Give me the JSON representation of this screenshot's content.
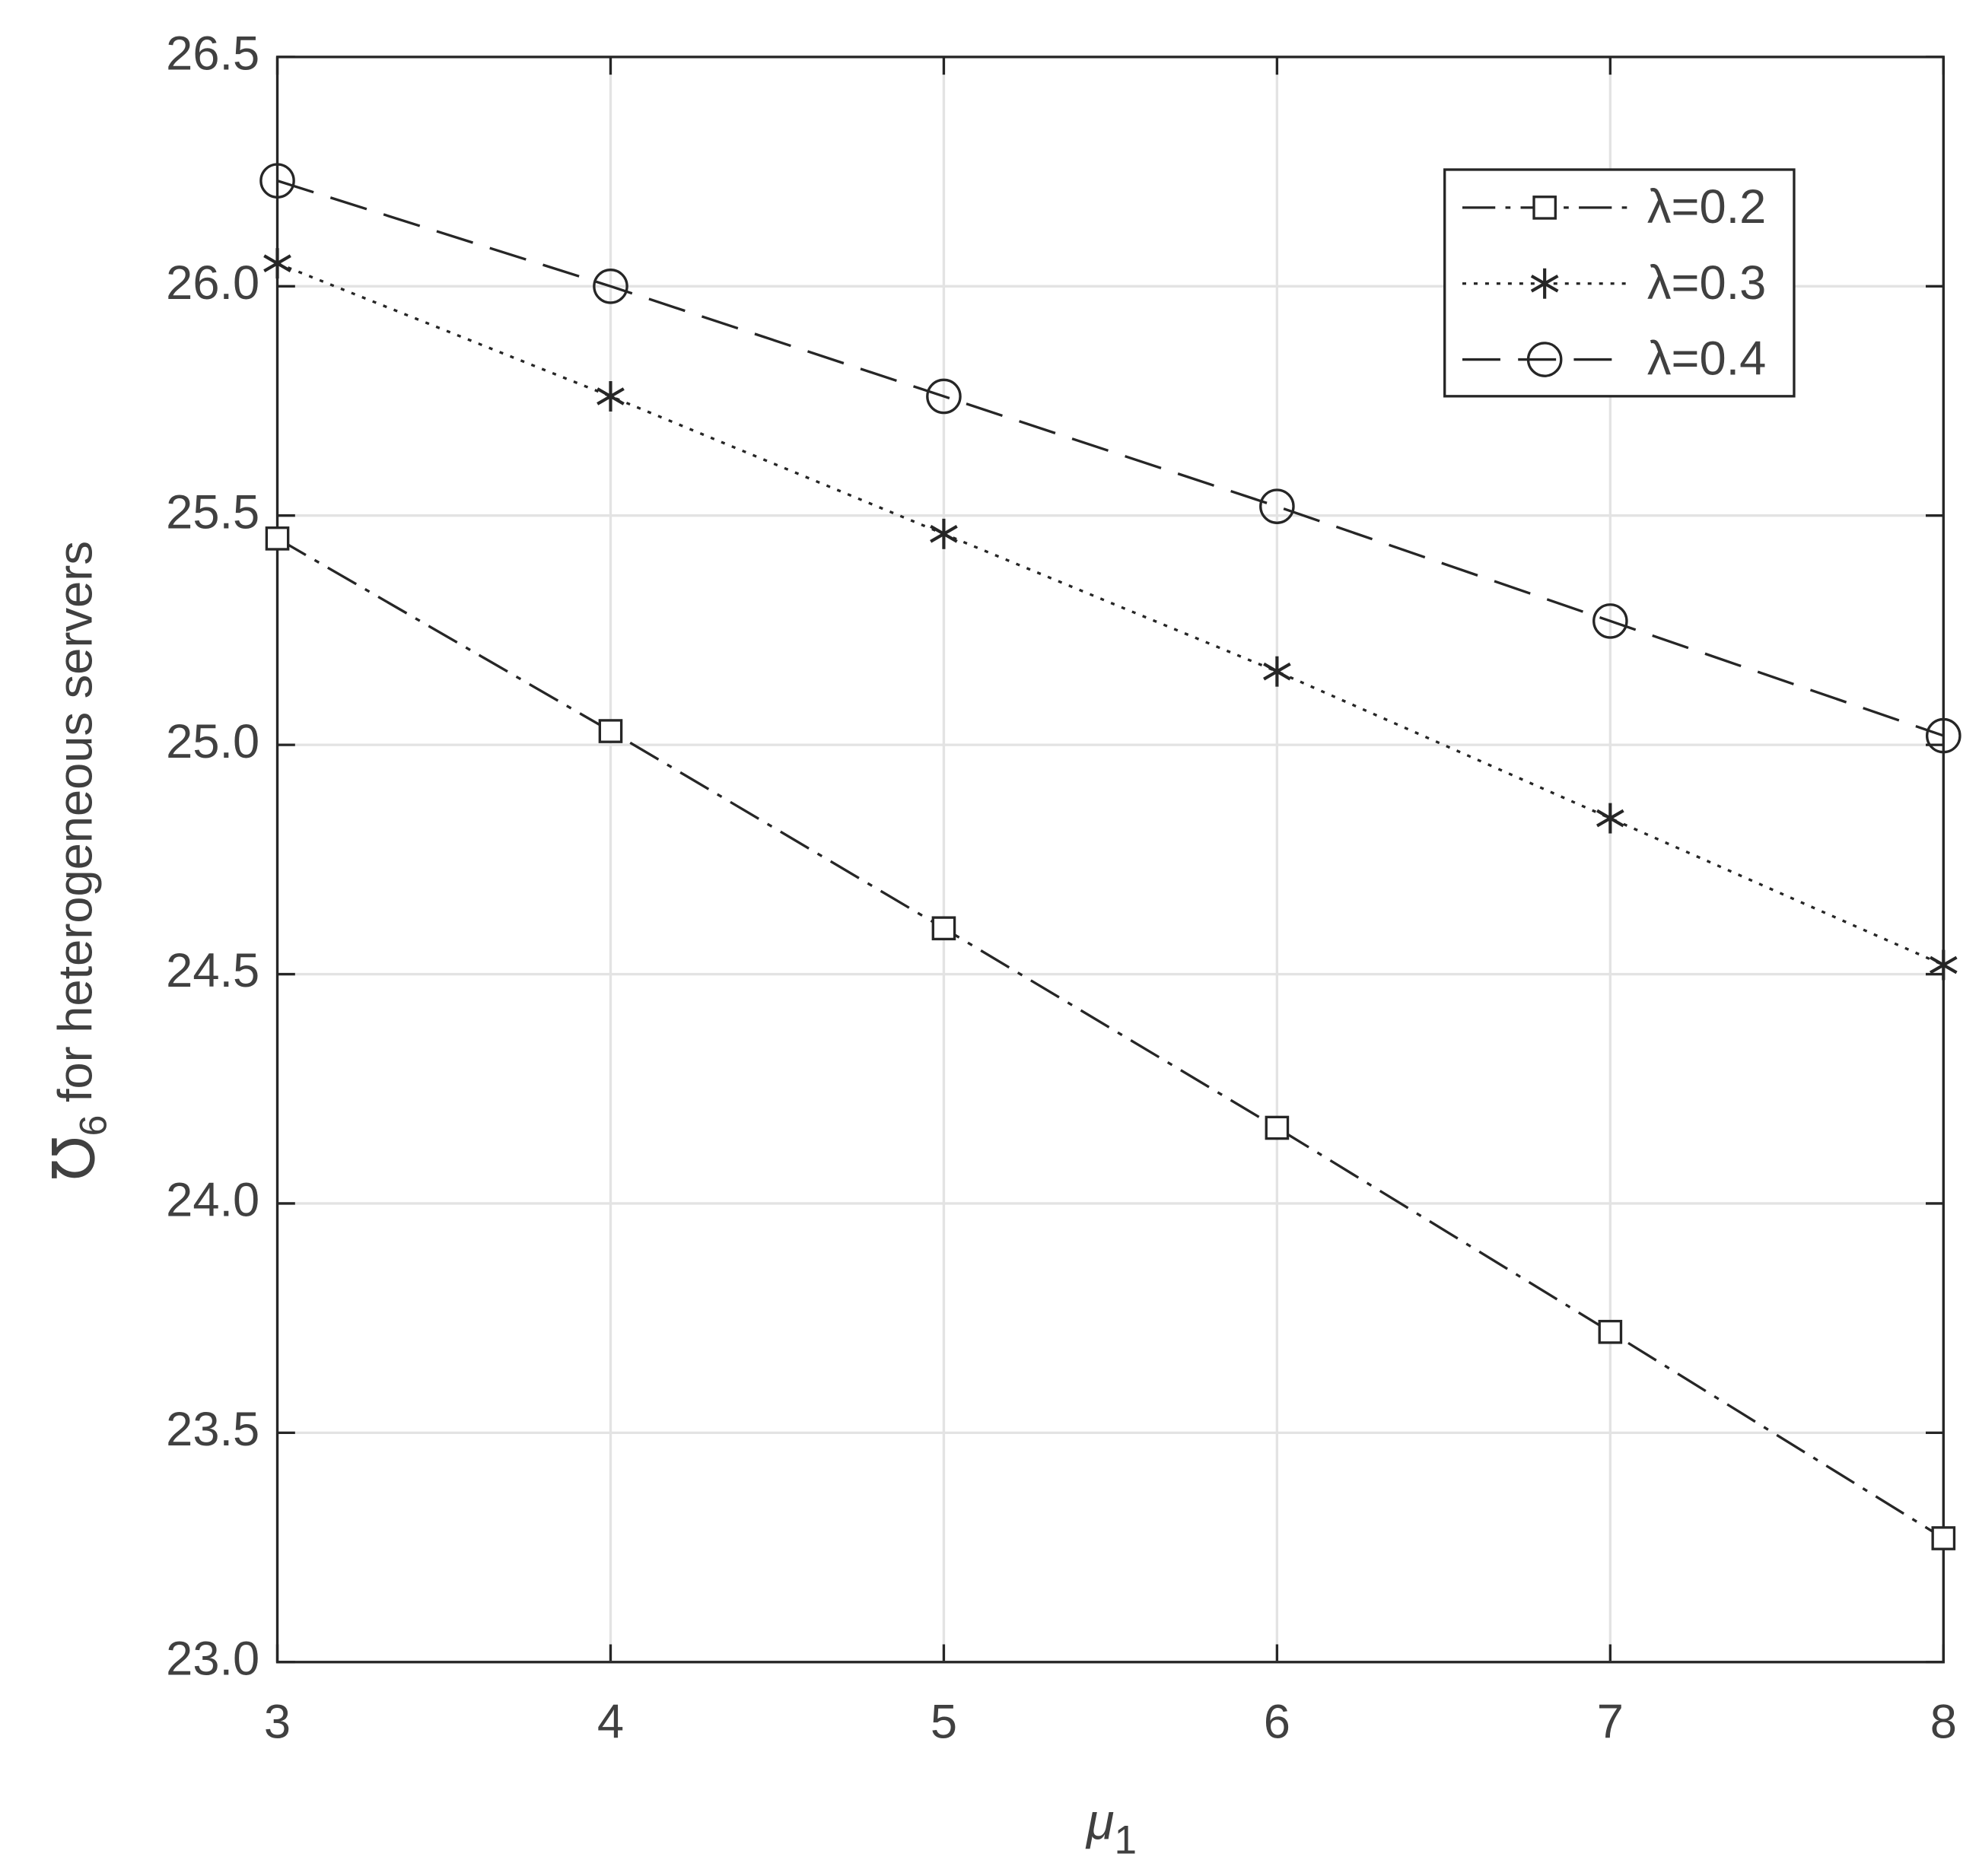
{
  "chart_data": {
    "type": "line",
    "xlabel": {
      "symbol": "μ",
      "sub": "1"
    },
    "ylabel": {
      "symbol": "℧",
      "sub": "6",
      "rest": "for heterogeneous servers"
    },
    "x": [
      3,
      4,
      5,
      6,
      7,
      8
    ],
    "xlim": [
      3,
      8
    ],
    "xticks": [
      3,
      4,
      5,
      6,
      7,
      8
    ],
    "ylim": [
      23,
      26.5
    ],
    "yticks": [
      {
        "value": 23,
        "label": "23.0"
      },
      23.5,
      {
        "value": 24,
        "label": "24.0"
      },
      24.5,
      {
        "value": 25,
        "label": "25.0"
      },
      25.5,
      {
        "value": 26,
        "label": "26.0"
      },
      26.5
    ],
    "grid": true,
    "legend": "upper right",
    "series": [
      {
        "name": "λ=0.2",
        "color": "#262626",
        "dash": "dashdot",
        "marker": "square",
        "values": [
          25.45,
          25.03,
          24.6,
          24.165,
          23.72,
          23.27
        ]
      },
      {
        "name": "λ=0.3",
        "color": "#262626",
        "dash": "dotted",
        "marker": "asterisk",
        "values": [
          26.05,
          25.76,
          25.46,
          25.16,
          24.84,
          24.52
        ]
      },
      {
        "name": "λ=0.4",
        "color": "#262626",
        "dash": "dashed",
        "marker": "circle",
        "values": [
          26.23,
          26.0,
          25.76,
          25.52,
          25.27,
          25.02
        ]
      }
    ]
  }
}
